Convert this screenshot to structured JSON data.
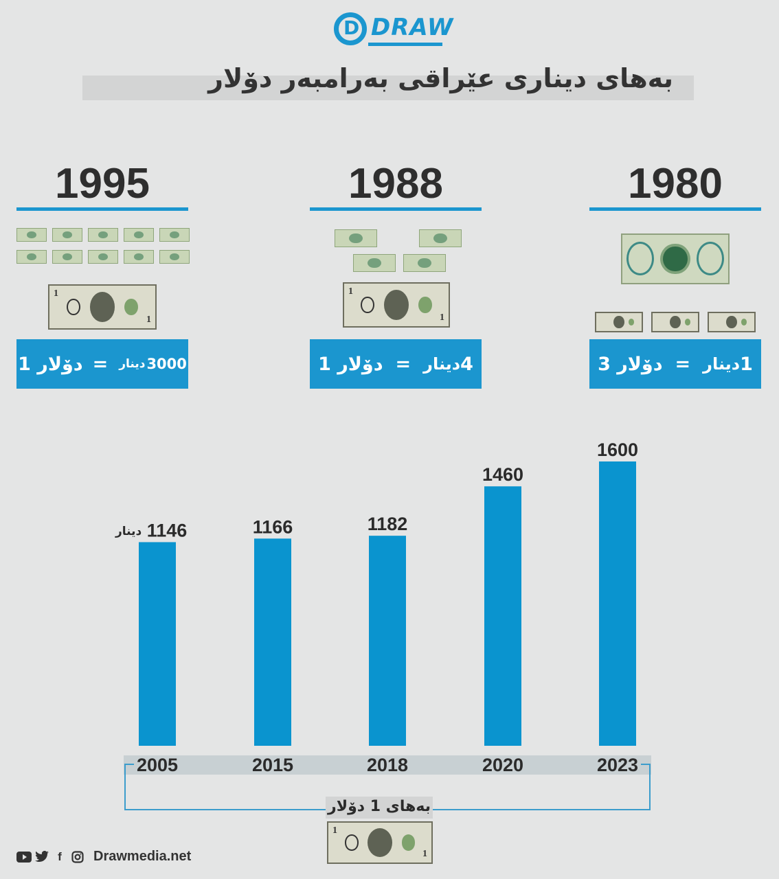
{
  "brand": {
    "logo_text": "DRAW",
    "website": "Drawmedia.net"
  },
  "title": "بەهای دیناری عێراقی بەرامبەر دۆلار",
  "eras": [
    {
      "year": "1995",
      "eq_left": "دۆلار 1",
      "eq_sign": "=",
      "eq_right_num": "3000",
      "eq_right_unit": "دینار"
    },
    {
      "year": "1988",
      "eq_left": "دۆلار 1",
      "eq_sign": "=",
      "eq_right_num": "4",
      "eq_right_unit": "دینار"
    },
    {
      "year": "1980",
      "eq_left": "دۆلار 3",
      "eq_sign": "=",
      "eq_right_num": "1",
      "eq_right_unit": "دینار"
    }
  ],
  "chart_data": {
    "type": "bar",
    "categories": [
      "2005",
      "2015",
      "2018",
      "2020",
      "2023"
    ],
    "values": [
      1146,
      1166,
      1182,
      1460,
      1600
    ],
    "unit_label": "دینار",
    "xlabel": "بەهای 1 دۆلار",
    "ylabel": "",
    "ylim": [
      0,
      1600
    ],
    "bar_color": "#0a94cf",
    "grid": false
  },
  "colors": {
    "accent": "#1b96cf",
    "background": "#e4e5e5",
    "text": "#2b2b2b"
  },
  "icons": [
    "youtube-icon",
    "twitter-icon",
    "facebook-icon",
    "instagram-icon"
  ]
}
